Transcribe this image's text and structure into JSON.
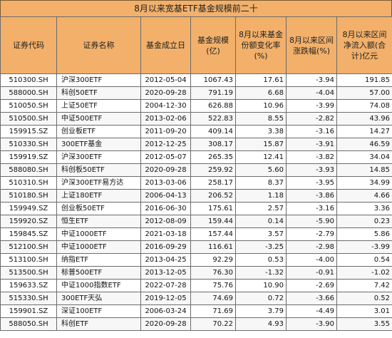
{
  "title": "8月以来宽基ETF基金规模前二十",
  "columns": [
    "证券代码",
    "证券名称",
    "基金成立日",
    "基金规模(亿)",
    "8月以来基金份额变化率(%)",
    "8月以来区间涨跌幅(%)",
    "8月以来区间净流入额(合计)亿元"
  ],
  "rows": [
    {
      "code": "510300.SH",
      "name": "沪深300ETF",
      "date": "2012-05-04",
      "size": "1067.43",
      "share_chg": "17.61",
      "ret": "-3.94",
      "flow": "191.85"
    },
    {
      "code": "588000.SH",
      "name": "科创50ETF",
      "date": "2020-09-28",
      "size": "791.19",
      "share_chg": "6.68",
      "ret": "-4.04",
      "flow": "57.00"
    },
    {
      "code": "510050.SH",
      "name": "上证50ETF",
      "date": "2004-12-30",
      "size": "626.88",
      "share_chg": "10.96",
      "ret": "-3.99",
      "flow": "74.08"
    },
    {
      "code": "510500.SH",
      "name": "中证500ETF",
      "date": "2013-02-06",
      "size": "522.83",
      "share_chg": "8.55",
      "ret": "-2.82",
      "flow": "43.96"
    },
    {
      "code": "159915.SZ",
      "name": "创业板ETF",
      "date": "2011-09-20",
      "size": "409.14",
      "share_chg": "3.38",
      "ret": "-3.16",
      "flow": "14.27"
    },
    {
      "code": "510330.SH",
      "name": "300ETF基金",
      "date": "2012-12-25",
      "size": "308.17",
      "share_chg": "15.87",
      "ret": "-3.91",
      "flow": "46.59"
    },
    {
      "code": "159919.SZ",
      "name": "沪深300ETF",
      "date": "2012-05-07",
      "size": "265.35",
      "share_chg": "12.41",
      "ret": "-3.82",
      "flow": "34.04"
    },
    {
      "code": "588080.SH",
      "name": "科创板50ETF",
      "date": "2020-09-28",
      "size": "259.92",
      "share_chg": "5.60",
      "ret": "-3.93",
      "flow": "14.85"
    },
    {
      "code": "510310.SH",
      "name": "沪深300ETF易方达",
      "date": "2013-03-06",
      "size": "258.17",
      "share_chg": "8.37",
      "ret": "-3.95",
      "flow": "34.99"
    },
    {
      "code": "510180.SH",
      "name": "上证180ETF",
      "date": "2006-04-13",
      "size": "206.52",
      "share_chg": "1.18",
      "ret": "-3.86",
      "flow": "4.66"
    },
    {
      "code": "159949.SZ",
      "name": "创业板50ETF",
      "date": "2016-06-30",
      "size": "175.61",
      "share_chg": "2.57",
      "ret": "-3.16",
      "flow": "3.36"
    },
    {
      "code": "159920.SZ",
      "name": "恒生ETF",
      "date": "2012-08-09",
      "size": "159.44",
      "share_chg": "0.14",
      "ret": "-5.90",
      "flow": "0.23"
    },
    {
      "code": "159845.SZ",
      "name": "中证1000ETF",
      "date": "2021-03-18",
      "size": "157.44",
      "share_chg": "3.57",
      "ret": "-2.79",
      "flow": "5.86"
    },
    {
      "code": "512100.SH",
      "name": "中证1000ETF",
      "date": "2016-09-29",
      "size": "116.61",
      "share_chg": "-3.25",
      "ret": "-2.98",
      "flow": "-3.99"
    },
    {
      "code": "513100.SH",
      "name": "纳指ETF",
      "date": "2013-04-25",
      "size": "92.29",
      "share_chg": "0.53",
      "ret": "-4.00",
      "flow": "0.54"
    },
    {
      "code": "513500.SH",
      "name": "标普500ETF",
      "date": "2013-12-05",
      "size": "76.30",
      "share_chg": "-1.32",
      "ret": "-0.91",
      "flow": "-1.02"
    },
    {
      "code": "159633.SZ",
      "name": "中证1000指数ETF",
      "date": "2022-07-28",
      "size": "75.76",
      "share_chg": "10.90",
      "ret": "-2.69",
      "flow": "7.42"
    },
    {
      "code": "515330.SH",
      "name": "300ETF天弘",
      "date": "2019-12-05",
      "size": "74.69",
      "share_chg": "0.72",
      "ret": "-3.66",
      "flow": "0.52"
    },
    {
      "code": "159901.SZ",
      "name": "深证100ETF",
      "date": "2006-03-24",
      "size": "71.69",
      "share_chg": "3.79",
      "ret": "-4.49",
      "flow": "3.01"
    },
    {
      "code": "588050.SH",
      "name": "科创ETF",
      "date": "2020-09-28",
      "size": "70.22",
      "share_chg": "4.93",
      "ret": "-3.90",
      "flow": "3.55"
    }
  ]
}
